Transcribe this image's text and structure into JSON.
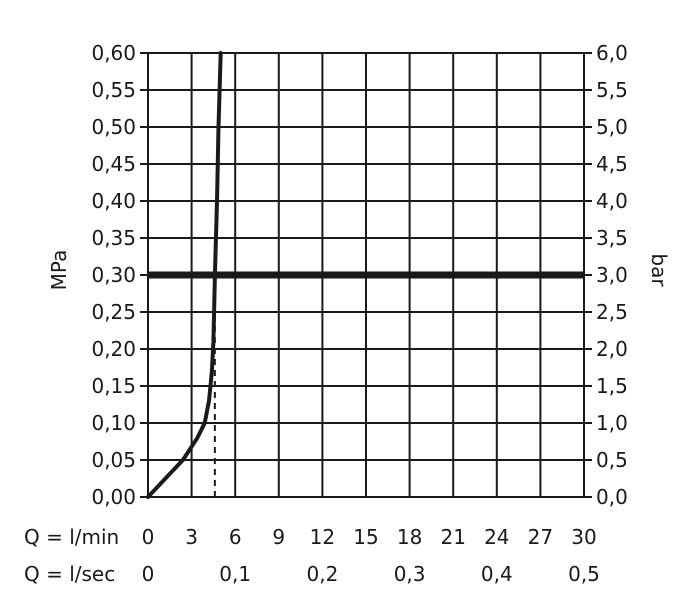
{
  "chart_data": {
    "type": "line",
    "ylabel_left": "MPa",
    "ylabel_right": "bar",
    "ylim": [
      0,
      0.6
    ],
    "xlim": [
      0,
      30
    ],
    "grid": true,
    "y_ticks_left": [
      "0,00",
      "0,05",
      "0,10",
      "0,15",
      "0,20",
      "0,25",
      "0,30",
      "0,35",
      "0,40",
      "0,45",
      "0,50",
      "0,55",
      "0,60"
    ],
    "y_ticks_right": [
      "0,0",
      "0,5",
      "1,0",
      "1,5",
      "2,0",
      "2,5",
      "3,0",
      "3,5",
      "4,0",
      "4,5",
      "5,0",
      "5,5",
      "6,0"
    ],
    "x_ticks_min_label": "Q = l/min",
    "x_ticks_min": [
      "0",
      "3",
      "6",
      "9",
      "12",
      "15",
      "18",
      "21",
      "24",
      "27",
      "30"
    ],
    "x_ticks_sec_label": "Q = l/sec",
    "x_ticks_sec": [
      "0",
      "0,1",
      "0,2",
      "0,3",
      "0,4",
      "0,5"
    ],
    "series": [
      {
        "style": "solid",
        "x": [
          0,
          1.2,
          2.4,
          3.4,
          3.9,
          4.2,
          4.4,
          4.5,
          4.55,
          4.6,
          4.75,
          4.85,
          5.0
        ],
        "y": [
          0,
          0.025,
          0.05,
          0.08,
          0.1,
          0.13,
          0.17,
          0.21,
          0.25,
          0.3,
          0.4,
          0.5,
          0.6
        ]
      }
    ],
    "reference_lines": [
      {
        "orientation": "horizontal",
        "y": 0.3,
        "style": "thick-solid"
      },
      {
        "orientation": "vertical",
        "x": 4.6,
        "y_from": 0,
        "y_to": 0.25,
        "style": "dashed"
      }
    ]
  }
}
